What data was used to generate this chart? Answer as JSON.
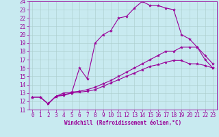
{
  "xlabel": "Windchill (Refroidissement éolien,°C)",
  "xlim_min": -0.5,
  "xlim_max": 23.5,
  "ylim_min": 11,
  "ylim_max": 24,
  "xticks": [
    0,
    1,
    2,
    3,
    4,
    5,
    6,
    7,
    8,
    9,
    10,
    11,
    12,
    13,
    14,
    15,
    16,
    17,
    18,
    19,
    20,
    21,
    22,
    23
  ],
  "yticks": [
    11,
    12,
    13,
    14,
    15,
    16,
    17,
    18,
    19,
    20,
    21,
    22,
    23,
    24
  ],
  "bg_color": "#c8eaf0",
  "line_color": "#990099",
  "grid_color": "#aacccc",
  "curve1_x": [
    0,
    1,
    2,
    3,
    4,
    5,
    6,
    7,
    8,
    9,
    10,
    11,
    12,
    13,
    14,
    15,
    16,
    17,
    18,
    19,
    20,
    21,
    22,
    23
  ],
  "curve1_y": [
    12.5,
    12.5,
    11.7,
    12.6,
    12.7,
    13.0,
    16.0,
    14.7,
    19.0,
    20.0,
    20.5,
    22.0,
    22.2,
    23.2,
    24.0,
    23.5,
    23.5,
    23.2,
    23.0,
    20.0,
    19.5,
    18.5,
    17.0,
    16.0
  ],
  "curve2_x": [
    0,
    1,
    2,
    3,
    4,
    5,
    6,
    7,
    8,
    9,
    10,
    11,
    12,
    13,
    14,
    15,
    16,
    17,
    18,
    19,
    20,
    21,
    22,
    23
  ],
  "curve2_y": [
    12.5,
    12.5,
    11.7,
    12.6,
    13.0,
    13.1,
    13.2,
    13.4,
    13.7,
    14.1,
    14.5,
    15.0,
    15.5,
    16.0,
    16.5,
    17.0,
    17.5,
    18.0,
    18.0,
    18.5,
    18.5,
    18.5,
    17.5,
    16.5
  ],
  "curve3_x": [
    0,
    1,
    2,
    3,
    4,
    5,
    6,
    7,
    8,
    9,
    10,
    11,
    12,
    13,
    14,
    15,
    16,
    17,
    18,
    19,
    20,
    21,
    22,
    23
  ],
  "curve3_y": [
    12.5,
    12.5,
    11.7,
    12.6,
    12.8,
    13.0,
    13.1,
    13.2,
    13.4,
    13.8,
    14.2,
    14.6,
    15.0,
    15.4,
    15.8,
    16.2,
    16.4,
    16.7,
    16.9,
    16.9,
    16.5,
    16.5,
    16.3,
    16.0
  ],
  "tick_fontsize": 5.5,
  "xlabel_fontsize": 5.5
}
